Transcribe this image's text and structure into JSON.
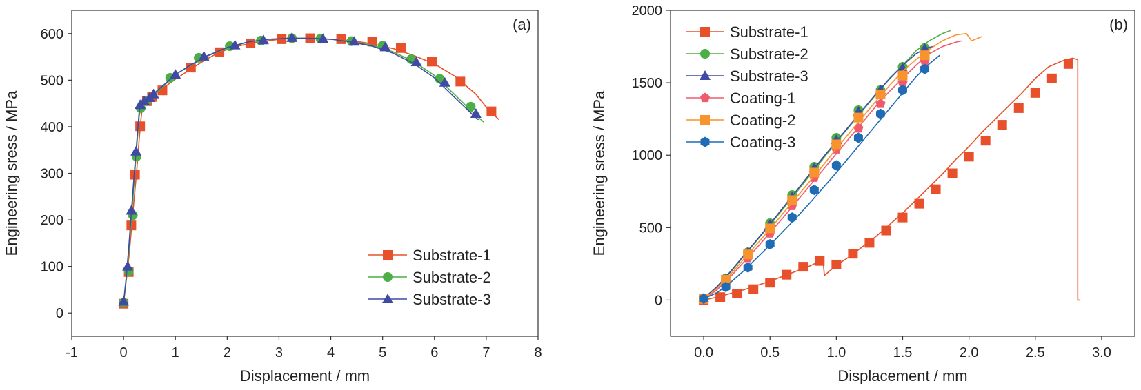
{
  "chart_data": [
    {
      "panel_label": "(a)",
      "type": "line",
      "xlabel": "Displacement / mm",
      "ylabel": "Engineering sress / MPa",
      "xlim": [
        -1,
        8
      ],
      "ylim": [
        -50,
        650
      ],
      "xticks": [
        -1,
        0,
        1,
        2,
        3,
        4,
        5,
        6,
        7,
        8
      ],
      "yticks": [
        0,
        100,
        200,
        300,
        400,
        500,
        600
      ],
      "legend_position": "bottom-right",
      "series": [
        {
          "name": "Substrate-1",
          "color": "#e8502c",
          "marker": "square",
          "x": [
            0,
            0.04,
            0.08,
            0.12,
            0.16,
            0.2,
            0.25,
            0.3,
            0.33,
            0.36,
            0.4,
            0.45,
            0.5,
            0.6,
            0.7,
            0.8,
            1.0,
            1.3,
            1.6,
            1.85,
            2.2,
            2.5,
            2.8,
            3.1,
            3.4,
            3.7,
            4.0,
            4.4,
            4.8,
            5.2,
            5.6,
            6.0,
            6.4,
            6.8,
            7.05,
            7.25
          ],
          "y": [
            20,
            60,
            95,
            140,
            190,
            240,
            300,
            370,
            410,
            440,
            450,
            456,
            462,
            470,
            478,
            486,
            502,
            524,
            545,
            560,
            573,
            580,
            585,
            589,
            590,
            590,
            588,
            585,
            578,
            568,
            553,
            535,
            508,
            470,
            435,
            415
          ],
          "marker_x": [
            0,
            0.1,
            0.15,
            0.22,
            0.32,
            0.45,
            0.55,
            0.75,
            1.3,
            1.85,
            2.45,
            3.05,
            3.6,
            4.2,
            4.8,
            5.35,
            5.95,
            6.5,
            7.1
          ],
          "marker_y": [
            20,
            88,
            188,
            297,
            401,
            455,
            464,
            478,
            527,
            560,
            579,
            588,
            590,
            588,
            583,
            569,
            540,
            497,
            433
          ]
        },
        {
          "name": "Substrate-2",
          "color": "#4caf45",
          "marker": "circle",
          "x": [
            0,
            0.05,
            0.1,
            0.15,
            0.2,
            0.25,
            0.3,
            0.33,
            0.36,
            0.4,
            0.5,
            0.6,
            0.8,
            1.0,
            1.3,
            1.6,
            2.0,
            2.4,
            2.8,
            3.2,
            3.6,
            4.0,
            4.4,
            4.8,
            5.2,
            5.6,
            6.0,
            6.4,
            6.7,
            6.95
          ],
          "y": [
            20,
            70,
            130,
            200,
            275,
            350,
            420,
            443,
            450,
            455,
            463,
            470,
            490,
            512,
            532,
            551,
            569,
            582,
            588,
            590,
            590,
            588,
            583,
            575,
            561,
            540,
            510,
            468,
            435,
            410
          ],
          "marker_x": [
            0,
            0.1,
            0.18,
            0.25,
            0.33,
            0.45,
            0.9,
            1.45,
            2.05,
            2.65,
            3.25,
            3.8,
            4.4,
            5.0,
            5.55,
            6.1,
            6.7
          ],
          "marker_y": [
            22,
            90,
            210,
            336,
            440,
            455,
            505,
            548,
            573,
            585,
            590,
            589,
            584,
            574,
            545,
            503,
            443
          ]
        },
        {
          "name": "Substrate-3",
          "color": "#3e4aa3",
          "marker": "triangle",
          "x": [
            0,
            0.05,
            0.1,
            0.15,
            0.2,
            0.25,
            0.3,
            0.33,
            0.36,
            0.4,
            0.5,
            0.6,
            0.8,
            1.0,
            1.3,
            1.6,
            2.0,
            2.4,
            2.8,
            3.2,
            3.6,
            4.0,
            4.4,
            4.8,
            5.2,
            5.6,
            6.0,
            6.4,
            6.7,
            6.85
          ],
          "y": [
            22,
            75,
            140,
            215,
            290,
            360,
            430,
            447,
            452,
            457,
            465,
            473,
            492,
            512,
            533,
            552,
            570,
            582,
            588,
            590,
            590,
            588,
            582,
            573,
            558,
            536,
            505,
            462,
            430,
            415
          ],
          "marker_x": [
            0,
            0.08,
            0.15,
            0.24,
            0.32,
            0.4,
            0.5,
            0.58,
            1.0,
            1.55,
            2.15,
            2.7,
            3.25,
            3.85,
            4.45,
            5.05,
            5.65,
            6.2,
            6.8
          ],
          "marker_y": [
            25,
            100,
            220,
            347,
            447,
            455,
            462,
            470,
            512,
            551,
            575,
            586,
            591,
            589,
            583,
            571,
            539,
            495,
            428
          ]
        }
      ]
    },
    {
      "panel_label": "(b)",
      "type": "line",
      "xlabel": "Displacement / mm",
      "ylabel": "Engineering sress / MPa",
      "xlim": [
        -0.25,
        3.25
      ],
      "ylim": [
        -250,
        2000
      ],
      "xticks": [
        0.0,
        0.5,
        1.0,
        1.5,
        2.0,
        2.5,
        3.0
      ],
      "xtick_labels": [
        "0.0",
        "0.5",
        "1.0",
        "1.5",
        "2.0",
        "2.5",
        "3.0"
      ],
      "yticks": [
        0,
        500,
        1000,
        1500,
        2000
      ],
      "legend_position": "top-left",
      "series": [
        {
          "name": "Substrate-1",
          "color": "#e8502c",
          "marker": "square",
          "x": [
            0,
            0.1,
            0.2,
            0.3,
            0.4,
            0.5,
            0.6,
            0.7,
            0.8,
            0.88,
            0.9,
            0.91,
            1.0,
            1.1,
            1.2,
            1.3,
            1.4,
            1.5,
            1.6,
            1.7,
            1.8,
            1.9,
            2.0,
            2.1,
            2.2,
            2.3,
            2.4,
            2.5,
            2.6,
            2.7,
            2.78,
            2.82,
            2.82,
            2.84
          ],
          "y": [
            0,
            20,
            45,
            70,
            100,
            130,
            165,
            200,
            235,
            270,
            275,
            170,
            240,
            300,
            370,
            440,
            520,
            600,
            690,
            780,
            870,
            970,
            1060,
            1160,
            1250,
            1340,
            1430,
            1530,
            1610,
            1650,
            1670,
            1660,
            0,
            0
          ],
          "marker_x": [
            0,
            0.125,
            0.25,
            0.375,
            0.5,
            0.625,
            0.75,
            0.875,
            1.0,
            1.125,
            1.25,
            1.375,
            1.5,
            1.625,
            1.75,
            1.875,
            2.0,
            2.125,
            2.25,
            2.375,
            2.5,
            2.625,
            2.75
          ],
          "marker_y": [
            0,
            20,
            45,
            75,
            120,
            175,
            230,
            270,
            245,
            320,
            395,
            480,
            570,
            665,
            765,
            875,
            990,
            1100,
            1210,
            1325,
            1430,
            1530,
            1630
          ]
        },
        {
          "name": "Substrate-2",
          "color": "#4caf45",
          "marker": "circle",
          "x": [
            0,
            0.1,
            0.2,
            0.3,
            0.4,
            0.5,
            0.6,
            0.7,
            0.8,
            0.9,
            1.0,
            1.1,
            1.2,
            1.3,
            1.4,
            1.5,
            1.6,
            1.7,
            1.8,
            1.86
          ],
          "y": [
            10,
            90,
            190,
            300,
            410,
            520,
            630,
            745,
            860,
            975,
            1090,
            1200,
            1310,
            1420,
            1530,
            1620,
            1720,
            1790,
            1840,
            1860
          ],
          "marker_x": [
            0,
            0.1667,
            0.3333,
            0.5,
            0.6667,
            0.8333,
            1.0,
            1.1667,
            1.3333,
            1.5,
            1.6667
          ],
          "marker_y": [
            10,
            150,
            330,
            530,
            725,
            920,
            1120,
            1310,
            1450,
            1610,
            1740
          ]
        },
        {
          "name": "Substrate-3",
          "color": "#3e4aa3",
          "marker": "triangle",
          "x": [
            0,
            0.1,
            0.2,
            0.3,
            0.4,
            0.5,
            0.6,
            0.7,
            0.8,
            0.9,
            1.0,
            1.1,
            1.2,
            1.3,
            1.4,
            1.5,
            1.6,
            1.68,
            1.73
          ],
          "y": [
            12,
            92,
            195,
            305,
            415,
            525,
            640,
            755,
            870,
            985,
            1095,
            1205,
            1315,
            1425,
            1525,
            1620,
            1700,
            1740,
            1750
          ],
          "marker_x": [
            0,
            0.1667,
            0.3333,
            0.5,
            0.6667,
            0.8333,
            1.0,
            1.1667,
            1.3333,
            1.5,
            1.6667
          ],
          "marker_y": [
            12,
            145,
            330,
            520,
            710,
            910,
            1105,
            1300,
            1450,
            1600,
            1735
          ]
        },
        {
          "name": "Coating-1",
          "color": "#f05a6e",
          "marker": "pentagon",
          "x": [
            0,
            0.1,
            0.2,
            0.3,
            0.4,
            0.5,
            0.6,
            0.7,
            0.8,
            0.9,
            1.0,
            1.1,
            1.2,
            1.3,
            1.4,
            1.5,
            1.6,
            1.7,
            1.8,
            1.9,
            1.95
          ],
          "y": [
            5,
            70,
            160,
            260,
            360,
            465,
            570,
            680,
            790,
            900,
            1010,
            1120,
            1230,
            1340,
            1440,
            1530,
            1620,
            1700,
            1750,
            1780,
            1790
          ],
          "marker_x": [
            0,
            0.1667,
            0.3333,
            0.5,
            0.6667,
            0.8333,
            1.0,
            1.1667,
            1.3333,
            1.5,
            1.6667
          ],
          "marker_y": [
            5,
            125,
            290,
            460,
            650,
            845,
            1040,
            1185,
            1355,
            1500,
            1650
          ]
        },
        {
          "name": "Coating-2",
          "color": "#f7942e",
          "marker": "square",
          "x": [
            0,
            0.1,
            0.2,
            0.3,
            0.4,
            0.5,
            0.6,
            0.7,
            0.8,
            0.9,
            1.0,
            1.1,
            1.2,
            1.3,
            1.4,
            1.5,
            1.6,
            1.7,
            1.8,
            1.9,
            1.98,
            2.02,
            2.1
          ],
          "y": [
            8,
            80,
            175,
            280,
            385,
            490,
            600,
            710,
            820,
            930,
            1045,
            1155,
            1265,
            1375,
            1480,
            1580,
            1660,
            1730,
            1790,
            1830,
            1840,
            1790,
            1820
          ],
          "marker_x": [
            0,
            0.1667,
            0.3333,
            0.5,
            0.6667,
            0.8333,
            1.0,
            1.1667,
            1.3333,
            1.5,
            1.6667
          ],
          "marker_y": [
            8,
            140,
            315,
            495,
            690,
            880,
            1075,
            1260,
            1420,
            1550,
            1690
          ]
        },
        {
          "name": "Coating-3",
          "color": "#1f6bb5",
          "marker": "hexagon",
          "x": [
            0,
            0.1,
            0.2,
            0.3,
            0.4,
            0.5,
            0.6,
            0.7,
            0.8,
            0.9,
            1.0,
            1.1,
            1.2,
            1.3,
            1.4,
            1.5,
            1.6,
            1.7,
            1.78
          ],
          "y": [
            10,
            50,
            120,
            200,
            290,
            380,
            475,
            570,
            670,
            775,
            880,
            990,
            1100,
            1210,
            1320,
            1430,
            1540,
            1630,
            1690
          ],
          "marker_x": [
            0,
            0.1667,
            0.3333,
            0.5,
            0.6667,
            0.8333,
            1.0,
            1.1667,
            1.3333,
            1.5,
            1.6667
          ],
          "marker_y": [
            10,
            90,
            225,
            385,
            570,
            760,
            930,
            1120,
            1285,
            1450,
            1595
          ]
        }
      ]
    }
  ]
}
